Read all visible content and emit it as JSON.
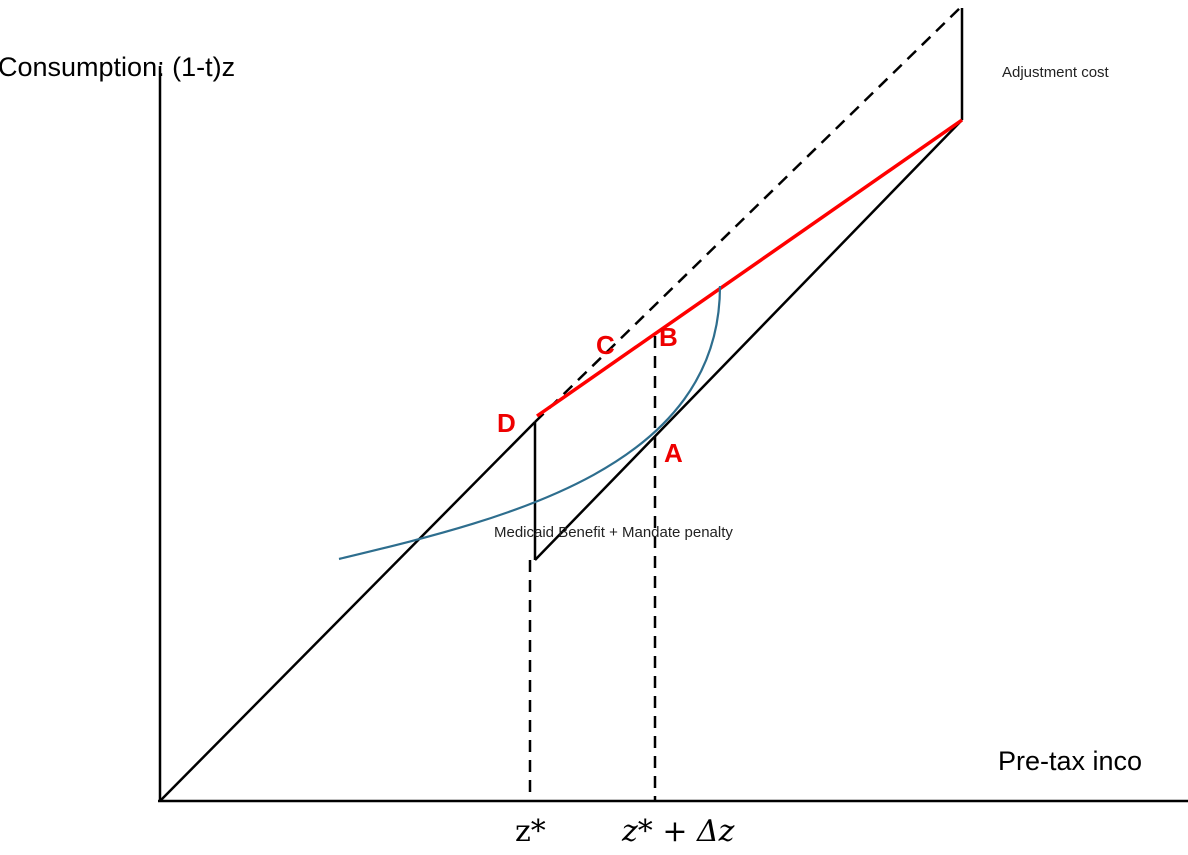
{
  "labels": {
    "y_axis": "Consumption: (1-t)z",
    "x_axis": "Pre-tax inco",
    "adjustment_cost": "Adjustment cost",
    "notch": "Medicaid Benefit + Mandate penalty"
  },
  "ticks": {
    "z_star": "z*",
    "z_star_plus_dz": "z* + Δz"
  },
  "points": {
    "A": "A",
    "B": "B",
    "C": "C",
    "D": "D"
  },
  "colors": {
    "budget_line": "#000000",
    "new_budget_line": "#ff0000",
    "indifference_curve": "#2e6e8e",
    "point_labels": "#ee0000"
  }
}
